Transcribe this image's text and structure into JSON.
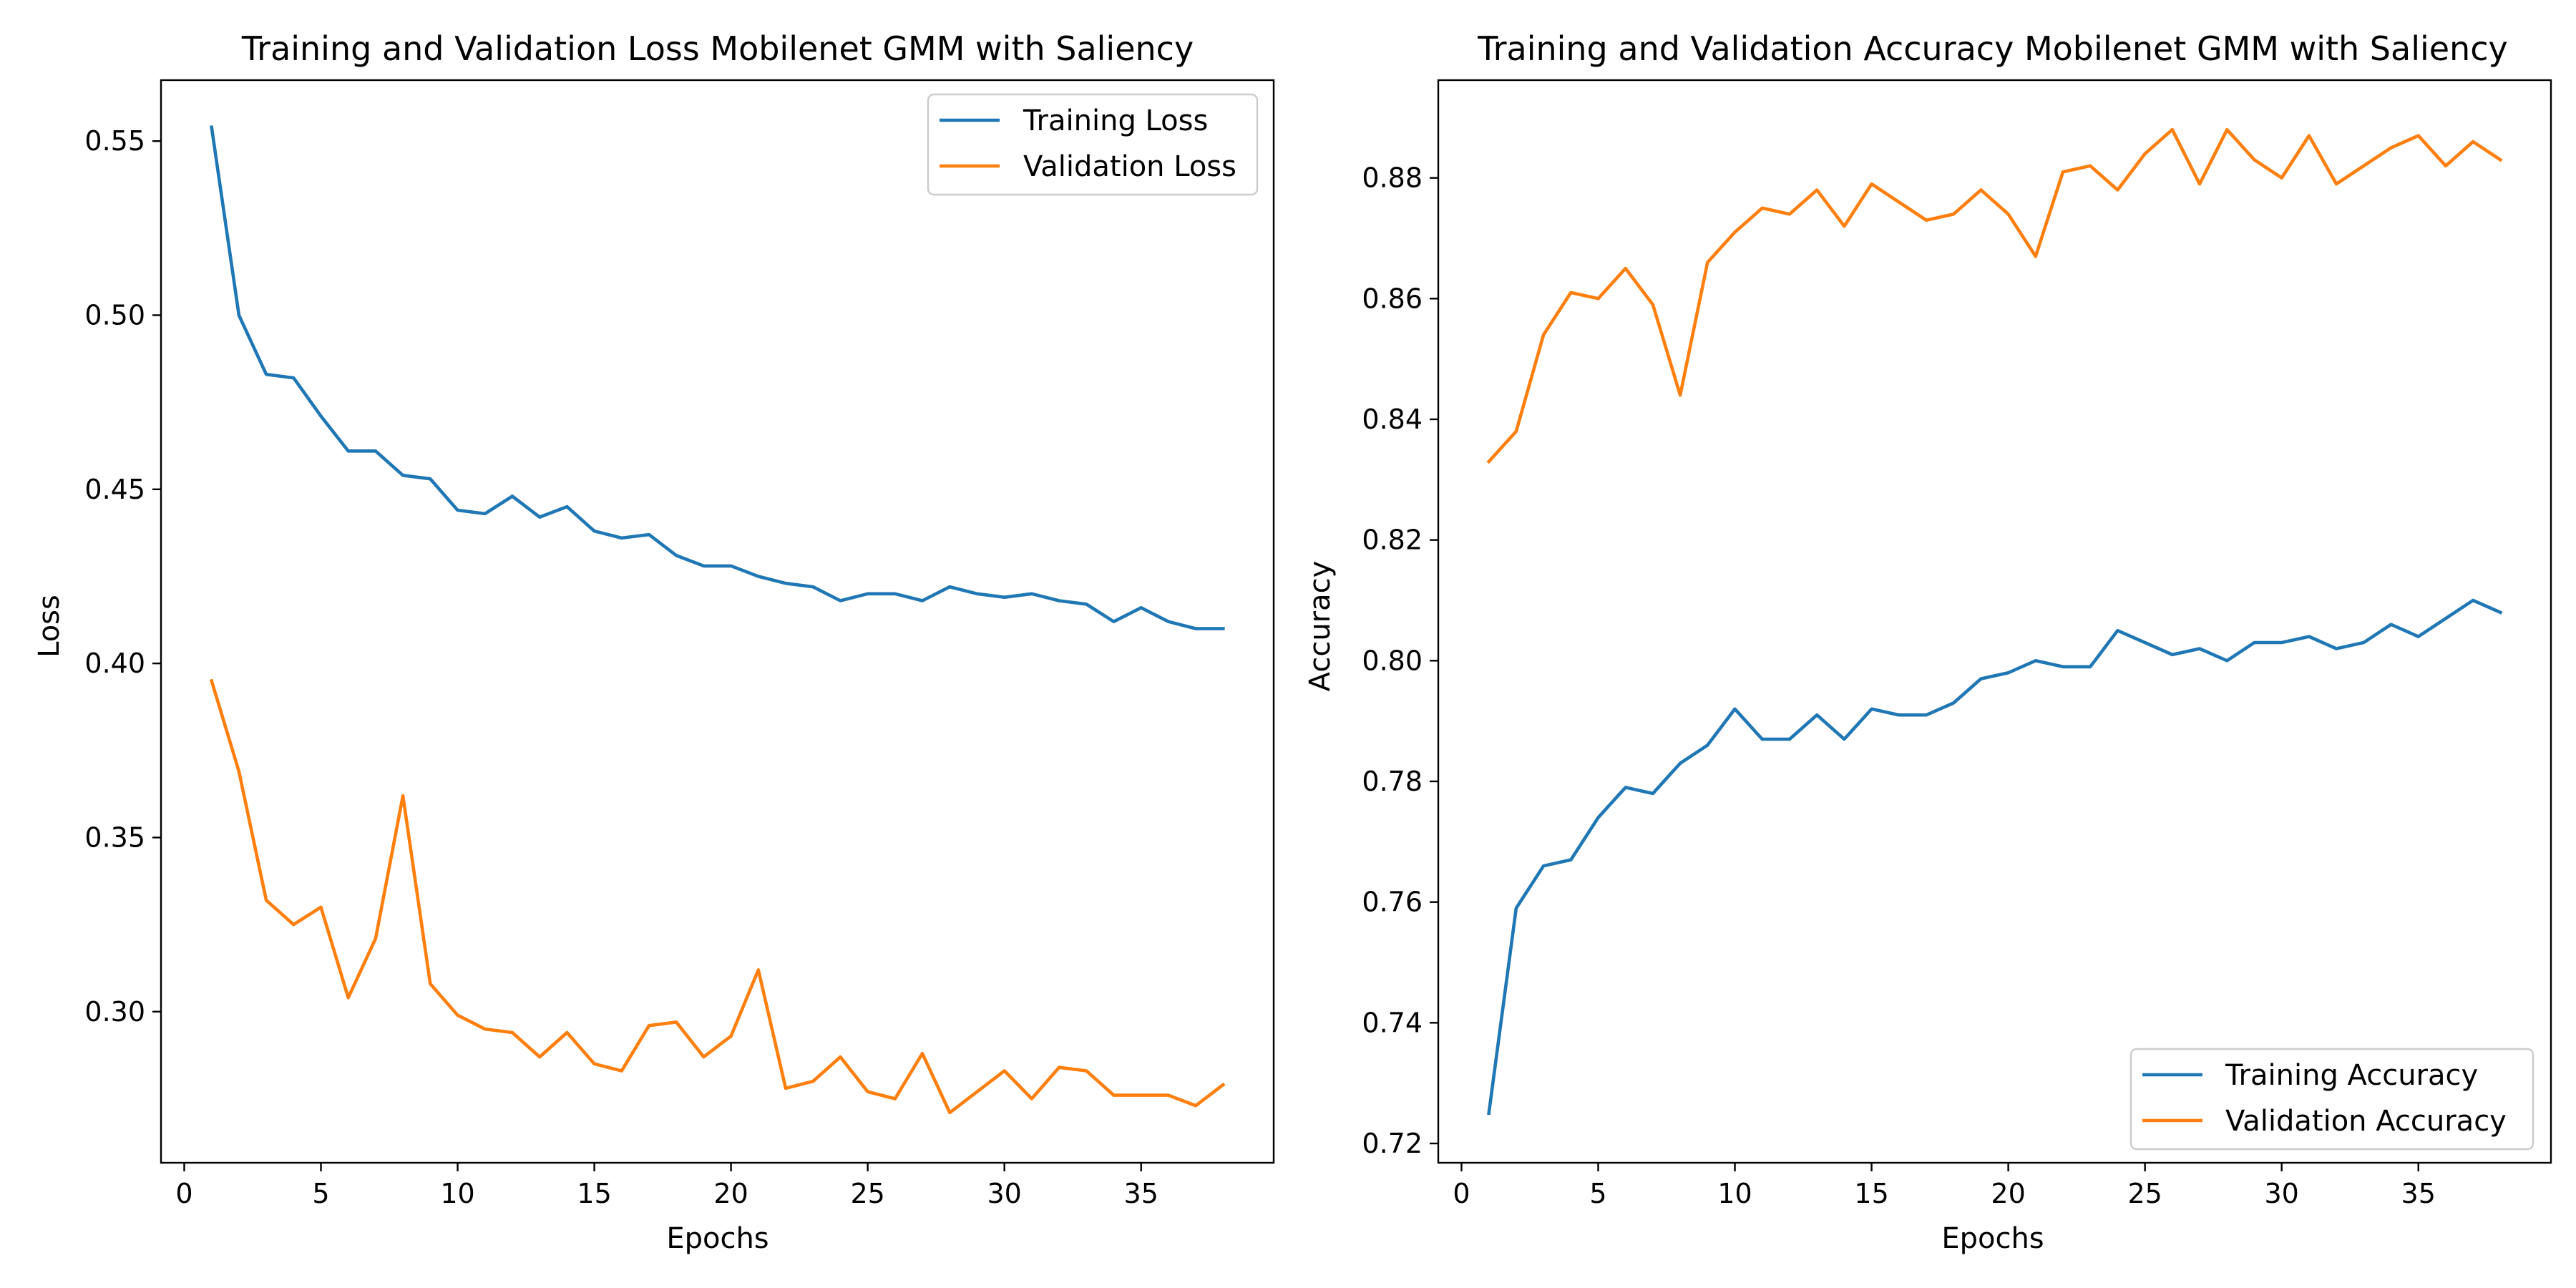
{
  "colors": {
    "training": "#1f77b4",
    "validation": "#ff7f0e"
  },
  "chart_data": [
    {
      "type": "line",
      "title": "Training and Validation Loss Mobilenet GMM with Saliency",
      "xlabel": "Epochs",
      "ylabel": "Loss",
      "xlim": [
        -0.85,
        39.85
      ],
      "ylim": [
        0.2566,
        0.5675
      ],
      "xticks": [
        0,
        5,
        10,
        15,
        20,
        25,
        30,
        35
      ],
      "yticks": [
        0.3,
        0.35,
        0.4,
        0.45,
        0.5,
        0.55
      ],
      "ytick_labels": [
        "0.30",
        "0.35",
        "0.40",
        "0.45",
        "0.50",
        "0.55"
      ],
      "legend_position": "upper right",
      "x": [
        1,
        2,
        3,
        4,
        5,
        6,
        7,
        8,
        9,
        10,
        11,
        12,
        13,
        14,
        15,
        16,
        17,
        18,
        19,
        20,
        21,
        22,
        23,
        24,
        25,
        26,
        27,
        28,
        29,
        30,
        31,
        32,
        33,
        34,
        35,
        36,
        37,
        38
      ],
      "series": [
        {
          "name": "Training Loss",
          "color": "#1f77b4",
          "values": [
            0.554,
            0.5,
            0.483,
            0.482,
            0.471,
            0.461,
            0.461,
            0.454,
            0.453,
            0.444,
            0.443,
            0.448,
            0.442,
            0.445,
            0.438,
            0.436,
            0.437,
            0.431,
            0.428,
            0.428,
            0.425,
            0.423,
            0.422,
            0.418,
            0.42,
            0.42,
            0.418,
            0.422,
            0.42,
            0.419,
            0.42,
            0.418,
            0.417,
            0.412,
            0.416,
            0.412,
            0.41,
            0.41
          ]
        },
        {
          "name": "Validation Loss",
          "color": "#ff7f0e",
          "values": [
            0.395,
            0.369,
            0.332,
            0.325,
            0.33,
            0.304,
            0.321,
            0.362,
            0.308,
            0.299,
            0.295,
            0.294,
            0.287,
            0.294,
            0.285,
            0.283,
            0.296,
            0.297,
            0.287,
            0.293,
            0.312,
            0.278,
            0.28,
            0.287,
            0.277,
            0.275,
            0.288,
            0.271,
            0.277,
            0.283,
            0.275,
            0.284,
            0.283,
            0.276,
            0.276,
            0.276,
            0.273,
            0.279
          ]
        }
      ]
    },
    {
      "type": "line",
      "title": "Training and Validation Accuracy Mobilenet GMM with Saliency",
      "xlabel": "Epochs",
      "ylabel": "Accuracy",
      "xlim": [
        -0.85,
        39.85
      ],
      "ylim": [
        0.7168,
        0.8962
      ],
      "xticks": [
        0,
        5,
        10,
        15,
        20,
        25,
        30,
        35
      ],
      "yticks": [
        0.72,
        0.74,
        0.76,
        0.78,
        0.8,
        0.82,
        0.84,
        0.86,
        0.88
      ],
      "ytick_labels": [
        "0.72",
        "0.74",
        "0.76",
        "0.78",
        "0.80",
        "0.82",
        "0.84",
        "0.86",
        "0.88"
      ],
      "legend_position": "lower right",
      "x": [
        1,
        2,
        3,
        4,
        5,
        6,
        7,
        8,
        9,
        10,
        11,
        12,
        13,
        14,
        15,
        16,
        17,
        18,
        19,
        20,
        21,
        22,
        23,
        24,
        25,
        26,
        27,
        28,
        29,
        30,
        31,
        32,
        33,
        34,
        35,
        36,
        37,
        38
      ],
      "series": [
        {
          "name": "Training Accuracy",
          "color": "#1f77b4",
          "values": [
            0.725,
            0.759,
            0.766,
            0.767,
            0.774,
            0.779,
            0.778,
            0.783,
            0.786,
            0.792,
            0.787,
            0.787,
            0.791,
            0.787,
            0.792,
            0.791,
            0.791,
            0.793,
            0.797,
            0.798,
            0.8,
            0.799,
            0.799,
            0.805,
            0.803,
            0.801,
            0.802,
            0.8,
            0.803,
            0.803,
            0.804,
            0.802,
            0.803,
            0.806,
            0.804,
            0.807,
            0.81,
            0.808
          ]
        },
        {
          "name": "Validation Accuracy",
          "color": "#ff7f0e",
          "values": [
            0.833,
            0.838,
            0.854,
            0.861,
            0.86,
            0.865,
            0.859,
            0.844,
            0.866,
            0.871,
            0.875,
            0.874,
            0.878,
            0.872,
            0.879,
            0.876,
            0.873,
            0.874,
            0.878,
            0.874,
            0.867,
            0.881,
            0.882,
            0.878,
            0.884,
            0.888,
            0.879,
            0.888,
            0.883,
            0.88,
            0.887,
            0.879,
            0.882,
            0.885,
            0.887,
            0.882,
            0.886,
            0.883
          ]
        }
      ]
    }
  ]
}
